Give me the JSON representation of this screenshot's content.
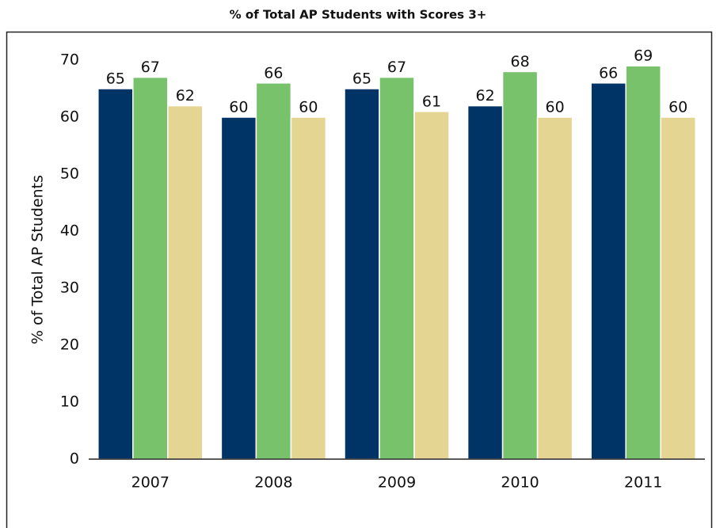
{
  "chart_data": {
    "type": "bar",
    "title": "% of Total AP Students with Scores 3+",
    "y_label": "% of Total AP Students",
    "categories": [
      "2007",
      "2008",
      "2009",
      "2010",
      "2011"
    ],
    "series": [
      {
        "color": "#003366",
        "values": [
          65,
          60,
          65,
          62,
          66
        ]
      },
      {
        "color": "#77c26a",
        "values": [
          67,
          66,
          67,
          68,
          69
        ]
      },
      {
        "color": "#e5d592",
        "values": [
          62,
          60,
          61,
          60,
          60
        ]
      }
    ],
    "ylim": [
      0,
      70
    ],
    "yticks": [
      0,
      10,
      20,
      30,
      40,
      50,
      60,
      70
    ],
    "grid": false
  }
}
